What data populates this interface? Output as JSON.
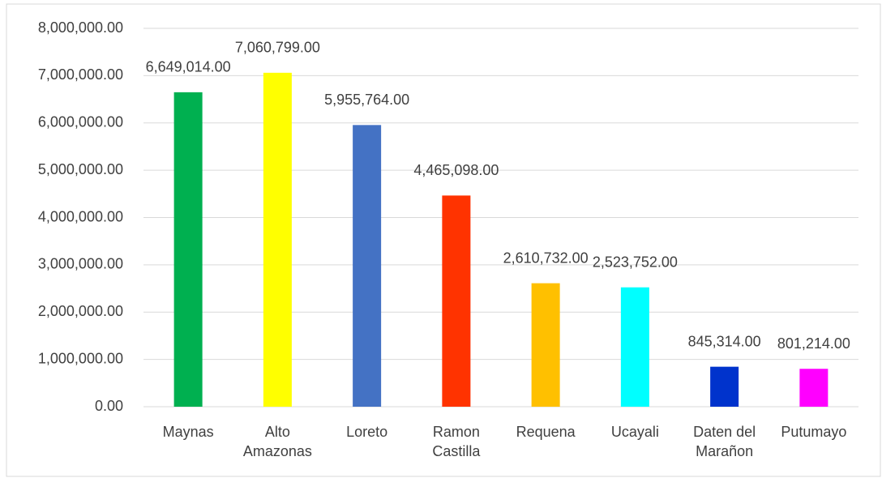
{
  "chart_data": {
    "type": "bar",
    "categories": [
      "Maynas",
      "Alto Amazonas",
      "Loreto",
      "Ramon Castilla",
      "Requena",
      "Ucayali",
      "Daten del Marañon",
      "Putumayo"
    ],
    "values": [
      6649014,
      7060799,
      5955764,
      4465098,
      2610732,
      2523752,
      845314,
      801214
    ],
    "value_labels": [
      "6,649,014.00",
      "7,060,799.00",
      "5,955,764.00",
      "4,465,098.00",
      "2,610,732.00",
      "2,523,752.00",
      "845,314.00",
      "801,214.00"
    ],
    "colors": [
      "#00b050",
      "#ffff00",
      "#4472c4",
      "#ff3300",
      "#ffc000",
      "#00ffff",
      "#0033cc",
      "#ff00ff"
    ],
    "ylim": [
      0,
      8000000
    ],
    "yticks": [
      {
        "value": 0,
        "label": "0.00"
      },
      {
        "value": 1000000,
        "label": "1,000,000.00"
      },
      {
        "value": 2000000,
        "label": "2,000,000.00"
      },
      {
        "value": 3000000,
        "label": "3,000,000.00"
      },
      {
        "value": 4000000,
        "label": "4,000,000.00"
      },
      {
        "value": 5000000,
        "label": "5,000,000.00"
      },
      {
        "value": 6000000,
        "label": "6,000,000.00"
      },
      {
        "value": 7000000,
        "label": "7,000,000.00"
      },
      {
        "value": 8000000,
        "label": "8,000,000.00"
      }
    ],
    "grid": true
  }
}
